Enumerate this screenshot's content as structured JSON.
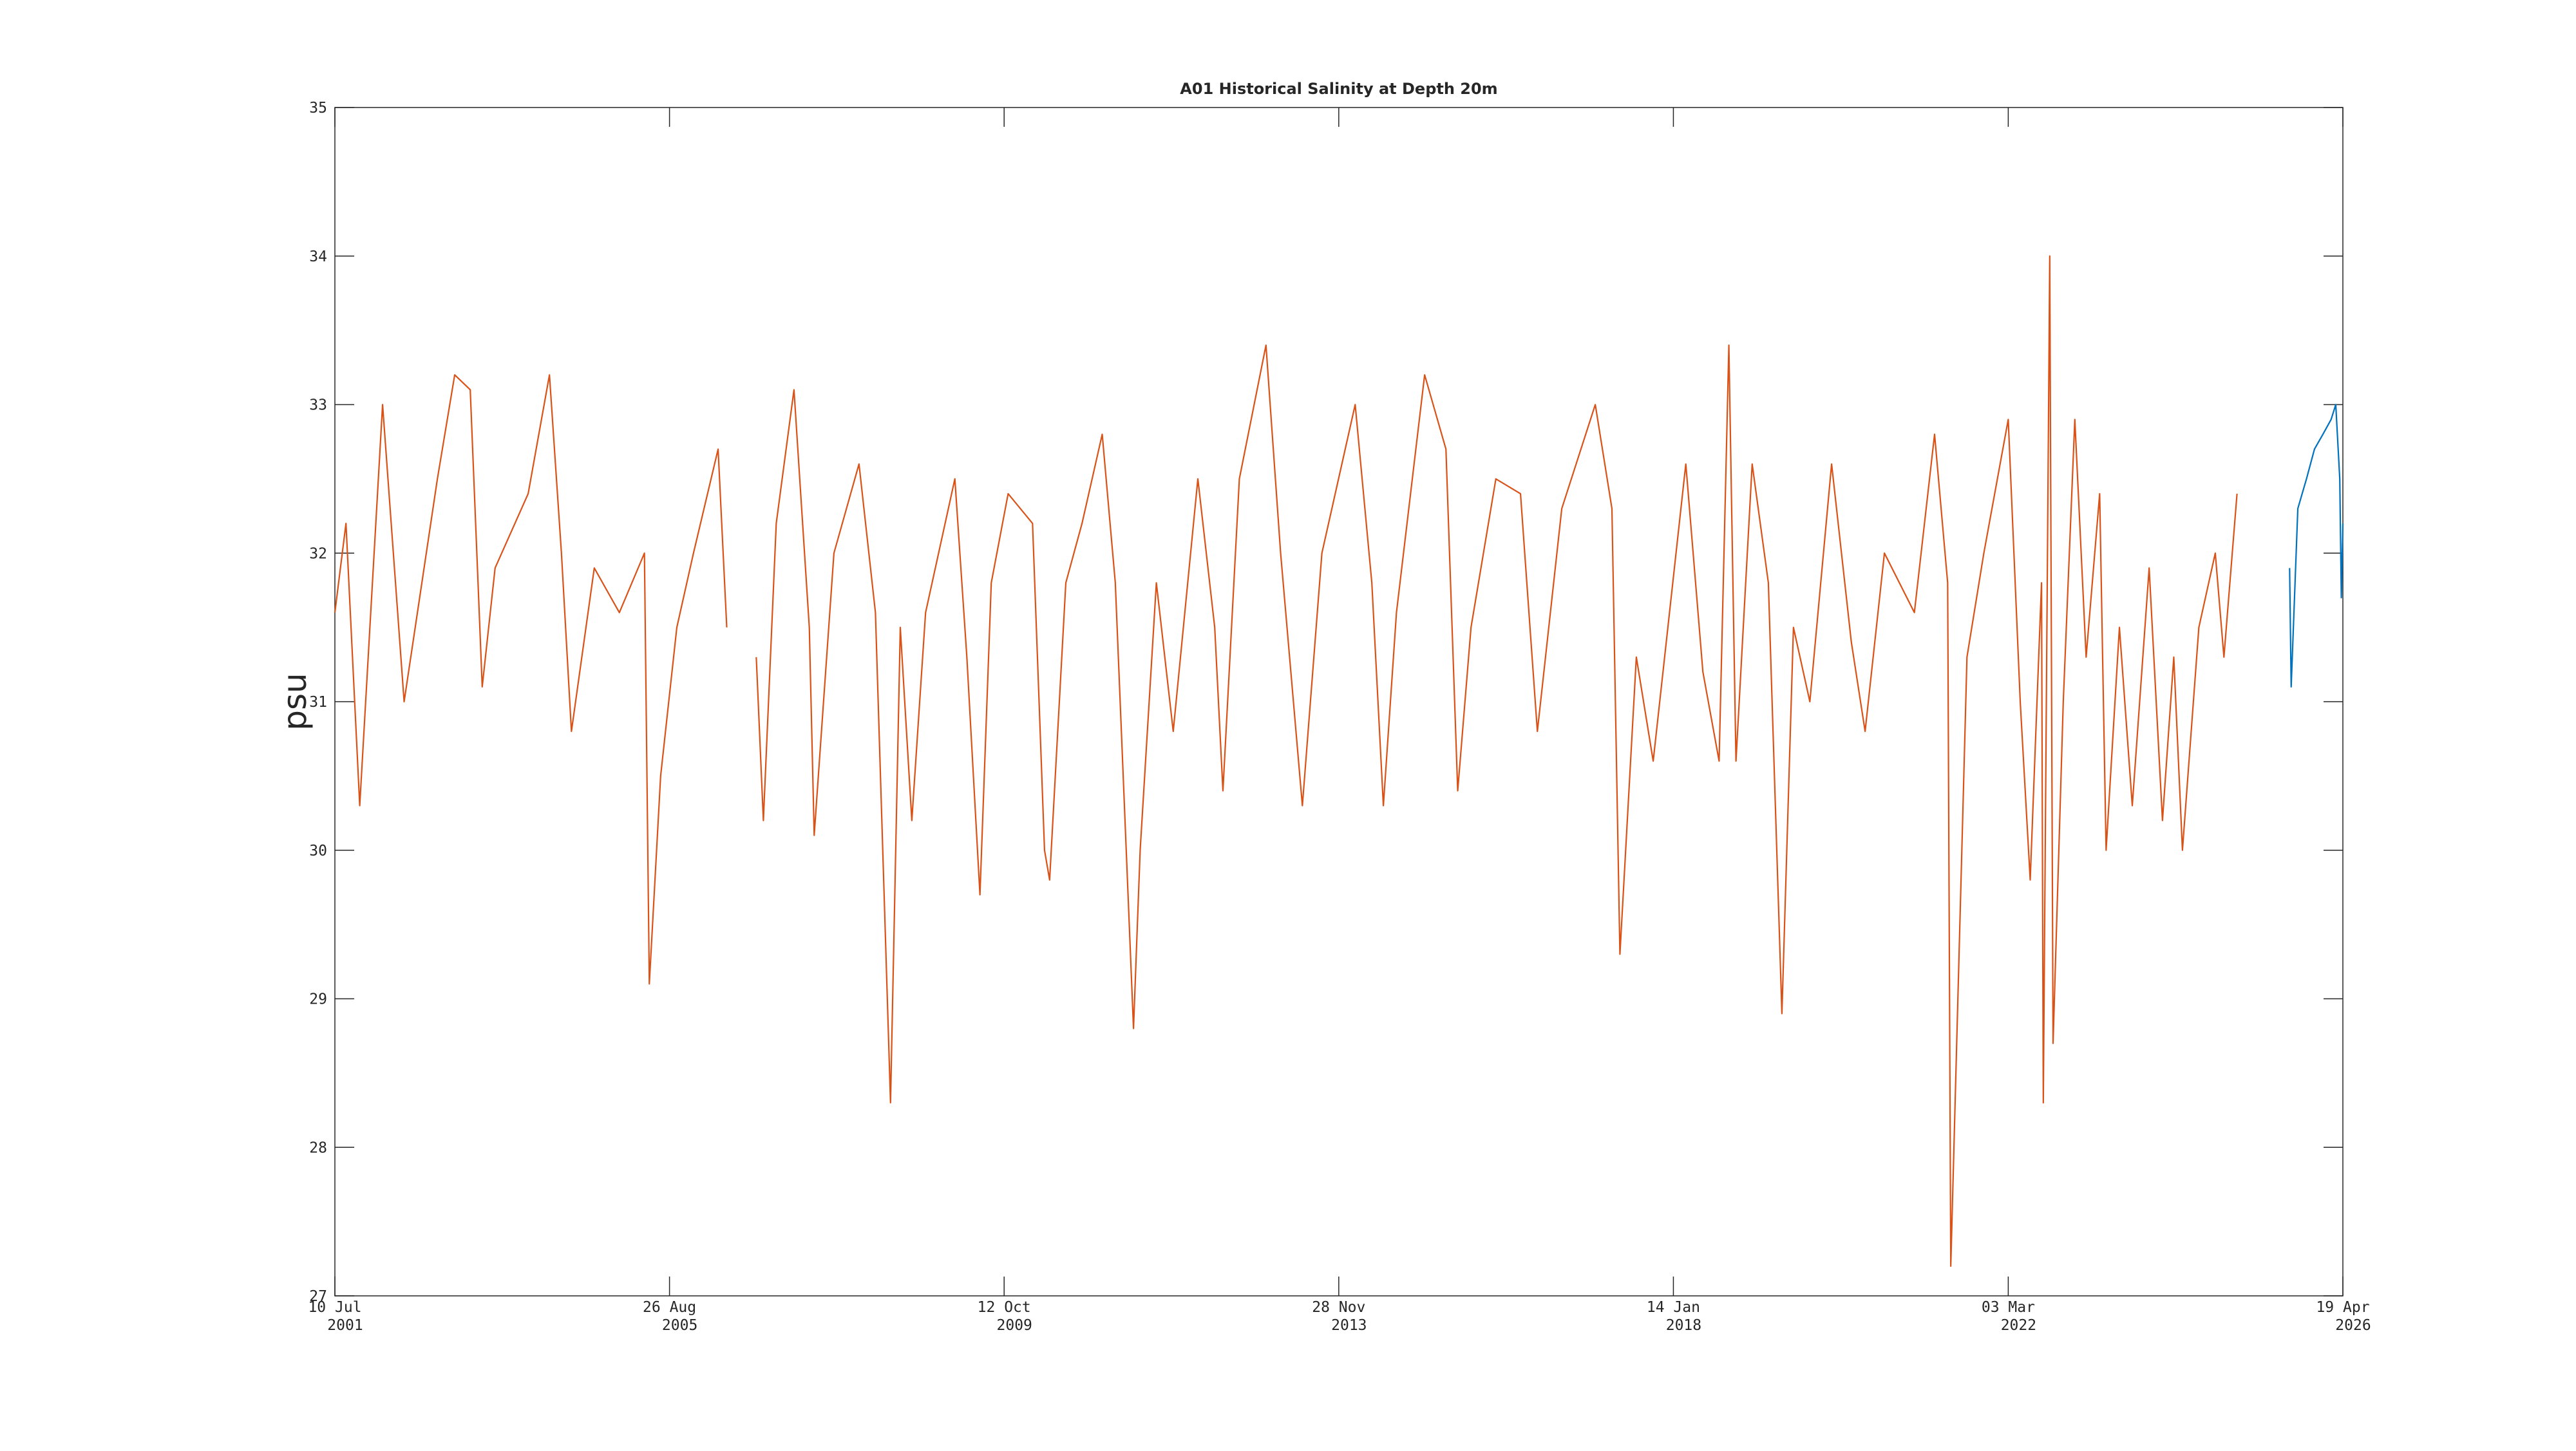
{
  "chart_data": {
    "type": "line",
    "title": "A01 Historical Salinity at Depth 20m",
    "ylabel": "psu",
    "xlim": [
      "2001-07-10",
      "2026-04-19"
    ],
    "xticks": [
      {
        "value": "2001-07-10",
        "label": [
          "10 Jul",
          "2001"
        ]
      },
      {
        "value": "2005-08-26",
        "label": [
          "26 Aug",
          "2005"
        ]
      },
      {
        "value": "2009-10-12",
        "label": [
          "12 Oct",
          "2009"
        ]
      },
      {
        "value": "2013-11-28",
        "label": [
          "28 Nov",
          "2013"
        ]
      },
      {
        "value": "2018-01-14",
        "label": [
          "14 Jan",
          "2018"
        ]
      },
      {
        "value": "2022-03-03",
        "label": [
          "03 Mar",
          "2022"
        ]
      },
      {
        "value": "2026-04-19",
        "label": [
          "19 Apr",
          "2026"
        ]
      }
    ],
    "ylim": [
      27,
      35
    ],
    "yticks": [
      27,
      28,
      29,
      30,
      31,
      32,
      33,
      34,
      35
    ],
    "grid": false,
    "series": [
      {
        "color": "#d95319",
        "x": [
          "2001-07-10",
          "2001-08-29",
          "2001-10-30",
          "2002-02-10",
          "2002-05-18",
          "2002-10-15",
          "2003-01-01",
          "2003-03-12",
          "2003-05-05",
          "2003-07-02",
          "2003-11-28",
          "2004-03-03",
          "2004-04-26",
          "2004-06-10",
          "2004-09-21",
          "2005-01-12",
          "2005-05-05",
          "2005-05-27",
          "2005-07-17",
          "2005-09-28",
          "2005-12-12",
          "2006-04-02",
          "2006-05-11",
          "2006-07-01",
          "2006-09-21",
          "2006-10-23",
          "2006-12-20",
          "2007-03-10",
          "2007-05-18",
          "2007-06-09",
          "2007-09-06",
          "2007-12-28",
          "2008-03-11",
          "2008-05-18",
          "2008-07-01",
          "2008-08-22",
          "2008-10-23",
          "2009-03-04",
          "2009-04-27",
          "2009-06-25",
          "2009-08-15",
          "2009-10-30",
          "2010-02-17",
          "2010-04-12",
          "2010-05-05",
          "2010-07-17",
          "2010-09-28",
          "2010-12-28",
          "2011-02-25",
          "2011-05-18",
          "2011-06-17",
          "2011-08-29",
          "2011-11-13",
          "2012-03-03",
          "2012-05-18",
          "2012-06-24",
          "2012-09-06",
          "2013-01-04",
          "2013-03-11",
          "2013-06-17",
          "2013-09-13",
          "2014-02-10",
          "2014-04-26",
          "2014-06-17",
          "2014-08-15",
          "2014-12-20",
          "2015-03-26",
          "2015-05-18",
          "2015-07-17",
          "2015-11-06",
          "2016-02-25",
          "2016-05-11",
          "2016-08-29",
          "2017-01-27",
          "2017-04-12",
          "2017-05-18",
          "2017-07-31",
          "2017-10-15",
          "2018-03-11",
          "2018-05-27",
          "2018-08-08",
          "2018-09-21",
          "2018-10-23",
          "2019-01-04",
          "2019-03-18",
          "2019-05-18",
          "2019-07-09",
          "2019-09-21",
          "2019-12-28",
          "2020-03-26",
          "2020-05-27",
          "2020-08-22",
          "2021-01-04",
          "2021-04-05",
          "2021-06-03",
          "2021-06-17",
          "2021-08-29",
          "2021-11-13",
          "2022-03-03",
          "2022-04-26",
          "2022-06-10",
          "2022-07-31",
          "2022-08-08",
          "2022-09-06",
          "2022-09-21",
          "2022-11-06",
          "2022-12-28",
          "2023-02-17",
          "2023-04-19",
          "2023-05-18",
          "2023-07-17",
          "2023-09-13",
          "2023-11-28",
          "2024-01-27",
          "2024-03-18",
          "2024-04-26",
          "2024-07-09",
          "2024-09-21",
          "2024-10-30",
          "2024-12-28"
        ],
        "values": [
          31.6,
          32.2,
          30.3,
          33.0,
          31.0,
          32.5,
          33.2,
          33.1,
          31.1,
          31.9,
          32.4,
          33.2,
          32.0,
          30.8,
          31.9,
          31.6,
          32.0,
          29.1,
          30.5,
          31.5,
          32.0,
          32.7,
          31.5,
          null,
          31.3,
          30.2,
          32.2,
          33.1,
          31.5,
          30.1,
          32.0,
          32.6,
          31.6,
          28.3,
          31.5,
          30.2,
          31.6,
          32.5,
          31.3,
          29.7,
          31.8,
          32.4,
          32.2,
          30.0,
          29.8,
          31.8,
          32.2,
          32.8,
          31.8,
          28.8,
          30.0,
          31.8,
          30.8,
          32.5,
          31.5,
          30.4,
          32.5,
          33.4,
          32.0,
          30.3,
          32.0,
          33.0,
          31.8,
          30.3,
          31.6,
          33.2,
          32.7,
          30.4,
          31.5,
          32.5,
          32.4,
          30.8,
          32.3,
          33.0,
          32.3,
          29.3,
          31.3,
          30.6,
          32.6,
          31.2,
          30.6,
          33.4,
          30.6,
          32.6,
          31.8,
          28.9,
          31.5,
          31.0,
          32.6,
          31.4,
          30.8,
          32.0,
          31.6,
          32.8,
          31.8,
          27.2,
          31.3,
          32.0,
          32.9,
          31.0,
          29.8,
          31.8,
          28.3,
          34.0,
          28.7,
          31.0,
          32.9,
          31.3,
          32.4,
          30.0,
          31.5,
          30.3,
          31.9,
          30.2,
          31.3,
          30.0,
          31.5,
          32.0,
          31.3,
          32.4
        ]
      },
      {
        "color": "#0072bd",
        "x": [
          "2025-08-22",
          "2025-08-29",
          "2025-09-28",
          "2025-11-06",
          "2025-12-12",
          "2026-01-19",
          "2026-02-25",
          "2026-03-18",
          "2026-04-05",
          "2026-04-12",
          "2026-04-19"
        ],
        "values": [
          31.9,
          31.1,
          32.3,
          32.5,
          32.7,
          32.8,
          32.9,
          33.0,
          32.5,
          31.7,
          32.2
        ]
      }
    ]
  }
}
